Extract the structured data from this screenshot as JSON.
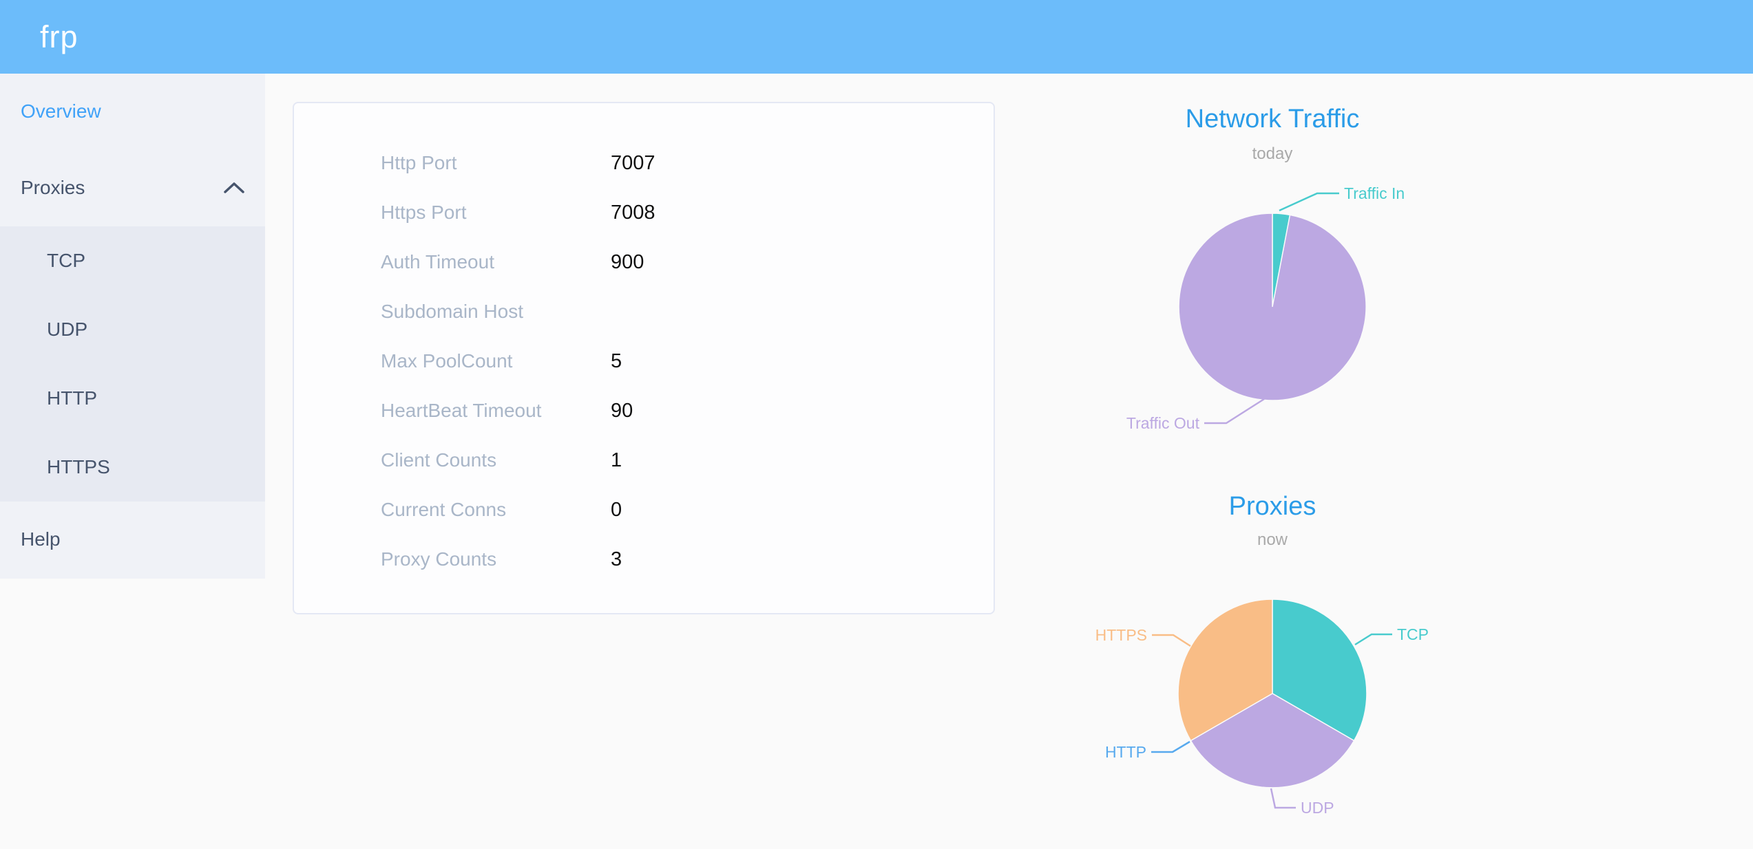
{
  "header": {
    "logo_text": "frp"
  },
  "sidebar": {
    "items": [
      {
        "label": "Overview",
        "state": "active"
      },
      {
        "label": "Proxies",
        "state": "expanded",
        "icon": "chevron-up"
      },
      {
        "label": "TCP",
        "parent": "Proxies"
      },
      {
        "label": "UDP",
        "parent": "Proxies"
      },
      {
        "label": "HTTP",
        "parent": "Proxies"
      },
      {
        "label": "HTTPS",
        "parent": "Proxies"
      },
      {
        "label": "Help"
      }
    ]
  },
  "server_info": {
    "rows": [
      {
        "label": "Http Port",
        "value": "7007"
      },
      {
        "label": "Https Port",
        "value": "7008"
      },
      {
        "label": "Auth Timeout",
        "value": "900"
      },
      {
        "label": "Subdomain Host",
        "value": ""
      },
      {
        "label": "Max PoolCount",
        "value": "5"
      },
      {
        "label": "HeartBeat Timeout",
        "value": "90"
      },
      {
        "label": "Client Counts",
        "value": "1"
      },
      {
        "label": "Current Conns",
        "value": "0"
      },
      {
        "label": "Proxy Counts",
        "value": "3"
      }
    ]
  },
  "chart_data": [
    {
      "type": "pie",
      "title": "Network Traffic",
      "subtitle": "today",
      "legend_position": "none",
      "labels": [
        "Traffic In",
        "Traffic Out"
      ],
      "values_percent": [
        3,
        97
      ],
      "colors": [
        "#48cbcd",
        "#bca8e2"
      ]
    },
    {
      "type": "pie",
      "title": "Proxies",
      "subtitle": "now",
      "legend_position": "none",
      "labels": [
        "TCP",
        "UDP",
        "HTTP",
        "HTTPS"
      ],
      "values": [
        1,
        1,
        0,
        1
      ],
      "colors": [
        "#48cbcd",
        "#bca8e2",
        "#57a9ee",
        "#f9bd86"
      ]
    }
  ],
  "theme": {
    "header_bg": "#6cbcfa",
    "sidebar_bg": "#f0f2f7",
    "submenu_bg": "#e7eaf2",
    "active_item_color": "#40a2f8",
    "menu_text_color": "#46546c",
    "title_blue": "#2b9ce8",
    "label_gray": "#a9b6c8",
    "page_bg": "#fafafa"
  }
}
